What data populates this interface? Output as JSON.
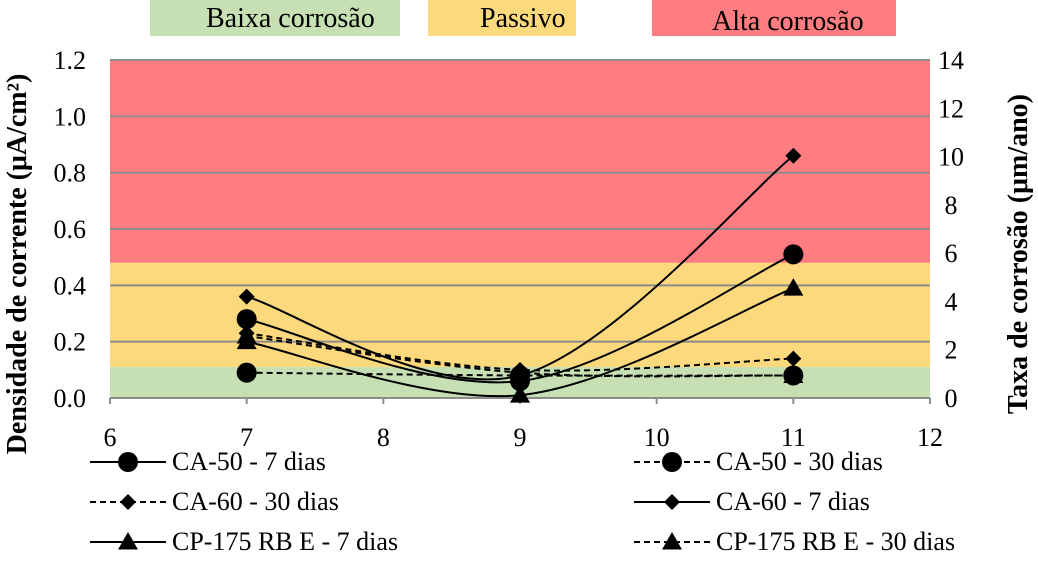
{
  "chart_data": {
    "type": "line",
    "xlabel": "",
    "ylabel": "Densidade de corrente (μA/cm²)",
    "y2label": "Taxa de corrosão (μm/ano)",
    "xlim": [
      6,
      12
    ],
    "ylim": [
      0,
      1.2
    ],
    "y2lim": [
      0,
      14
    ],
    "xticks": [
      "6",
      "7",
      "8",
      "9",
      "10",
      "11",
      "12"
    ],
    "yticks": [
      "0.0",
      "0.2",
      "0.4",
      "0.6",
      "0.8",
      "1.0",
      "1.2"
    ],
    "y2ticks": [
      "0",
      "2",
      "4",
      "6",
      "8",
      "10",
      "12",
      "14"
    ],
    "bands": [
      {
        "label": "Baixa corrosão",
        "from": 0,
        "to": 0.11,
        "color": "#c6e0b4"
      },
      {
        "label": "Passivo",
        "from": 0.11,
        "to": 0.48,
        "color": "#fdd97e"
      },
      {
        "label": "Alta corrosão",
        "from": 0.48,
        "to": 1.2,
        "color": "#ff7c80"
      }
    ],
    "x": [
      7,
      9,
      11
    ],
    "series": [
      {
        "name": "CA-50 - 7 dias",
        "values": [
          0.28,
          0.06,
          0.51
        ],
        "marker": "circle",
        "dash": "solid"
      },
      {
        "name": "CA-50 - 30 dias",
        "values": [
          0.09,
          0.08,
          0.08
        ],
        "marker": "circle",
        "dash": "dashed"
      },
      {
        "name": "CA-60 - 30 dias",
        "values": [
          0.23,
          0.1,
          0.14
        ],
        "marker": "diamond",
        "dash": "dashed"
      },
      {
        "name": "CA-60 - 7 dias",
        "values": [
          0.36,
          0.08,
          0.86
        ],
        "marker": "diamond",
        "dash": "solid"
      },
      {
        "name": "CP-175 RB E - 7 dias",
        "values": [
          0.2,
          0.01,
          0.39
        ],
        "marker": "triangle",
        "dash": "solid"
      },
      {
        "name": "CP-175 RB E - 30 dias",
        "values": [
          0.22,
          0.09,
          0.08
        ],
        "marker": "triangle",
        "dash": "dashed"
      }
    ]
  }
}
